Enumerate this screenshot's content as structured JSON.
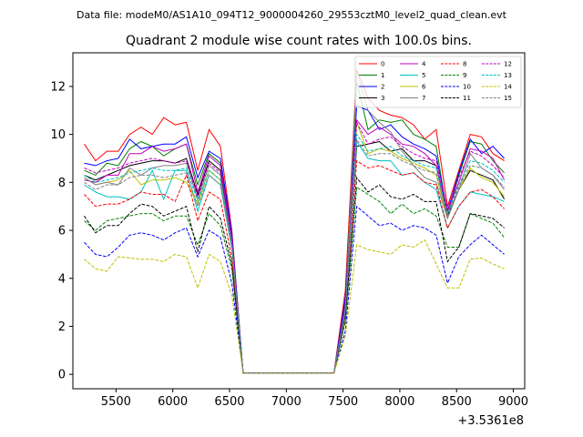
{
  "chart_data": {
    "type": "line",
    "suptitle": "Data file: modeM0/AS1A10_094T12_9000004260_29553cztM0_level2_quad_clean.evt",
    "title": "Quadrant 2 module wise count rates with 100.0s bins.",
    "xlabel": "",
    "ylabel": "",
    "x_offset_label": "+3.5361e8",
    "xlim": [
      5120,
      9100
    ],
    "ylim": [
      -0.6,
      13.4
    ],
    "x_ticks": [
      5500,
      6000,
      6500,
      7000,
      7500,
      8000,
      8500,
      9000
    ],
    "y_ticks": [
      0,
      2,
      4,
      6,
      8,
      10,
      12
    ],
    "grid": false,
    "legend_position": "top-right",
    "legend_columns": 4,
    "x": [
      5220,
      5320,
      5420,
      5520,
      5620,
      5720,
      5820,
      5920,
      6020,
      6120,
      6220,
      6320,
      6420,
      6520,
      6620,
      6720,
      6820,
      6920,
      7020,
      7120,
      7220,
      7320,
      7420,
      7520,
      7620,
      7720,
      7820,
      7920,
      8020,
      8120,
      8220,
      8320,
      8420,
      8520,
      8620,
      8720,
      8820,
      8920
    ],
    "series": [
      {
        "name": "0",
        "color": "#ff0000",
        "dash": "solid",
        "values": [
          9.6,
          8.9,
          9.3,
          9.3,
          10.0,
          10.3,
          10.0,
          10.7,
          10.4,
          10.5,
          8.5,
          10.2,
          9.5,
          6.0,
          0.05,
          0.05,
          0.05,
          0.05,
          0.05,
          0.05,
          0.05,
          0.05,
          0.05,
          3.5,
          12.7,
          11.5,
          11.0,
          10.8,
          10.7,
          10.4,
          9.8,
          10.2,
          7.0,
          8.5,
          10.0,
          9.9,
          9.2,
          8.9
        ]
      },
      {
        "name": "1",
        "color": "#008000",
        "dash": "solid",
        "values": [
          8.5,
          8.3,
          8.8,
          8.7,
          9.4,
          9.7,
          9.5,
          9.1,
          9.4,
          9.6,
          7.9,
          9.2,
          8.8,
          5.8,
          0.05,
          0.05,
          0.05,
          0.05,
          0.05,
          0.05,
          0.05,
          0.05,
          0.05,
          3.0,
          12.2,
          10.2,
          10.6,
          10.5,
          10.6,
          10.0,
          9.8,
          9.5,
          6.6,
          8.3,
          9.7,
          9.6,
          8.9,
          8.4
        ]
      },
      {
        "name": "2",
        "color": "#0000ff",
        "dash": "solid",
        "values": [
          8.8,
          8.7,
          8.9,
          9.0,
          9.8,
          9.4,
          9.5,
          9.6,
          9.6,
          9.9,
          8.2,
          9.3,
          9.0,
          5.9,
          0.05,
          0.05,
          0.05,
          0.05,
          0.05,
          0.05,
          0.05,
          0.05,
          0.05,
          3.2,
          11.2,
          11.0,
          10.2,
          10.4,
          9.9,
          9.6,
          9.4,
          9.1,
          6.8,
          8.4,
          9.8,
          9.2,
          9.5,
          9.0
        ]
      },
      {
        "name": "3",
        "color": "#000000",
        "dash": "solid",
        "values": [
          8.3,
          8.1,
          8.3,
          8.5,
          8.7,
          8.8,
          8.9,
          8.9,
          8.8,
          9.0,
          7.5,
          8.9,
          8.5,
          5.5,
          0.05,
          0.05,
          0.05,
          0.05,
          0.05,
          0.05,
          0.05,
          0.05,
          0.05,
          2.8,
          9.5,
          9.6,
          9.7,
          9.3,
          9.4,
          8.9,
          8.9,
          8.7,
          6.6,
          7.7,
          8.5,
          8.3,
          8.1,
          7.3
        ]
      },
      {
        "name": "4",
        "color": "#bf00bf",
        "dash": "solid",
        "values": [
          8.1,
          8.0,
          8.3,
          8.3,
          9.2,
          9.2,
          9.5,
          9.3,
          9.4,
          9.6,
          7.6,
          9.1,
          8.7,
          5.7,
          0.05,
          0.05,
          0.05,
          0.05,
          0.05,
          0.05,
          0.05,
          0.05,
          0.05,
          2.9,
          10.6,
          10.0,
          10.3,
          10.0,
          9.6,
          9.5,
          9.2,
          8.7,
          6.8,
          8.0,
          9.4,
          9.3,
          9.0,
          8.1
        ]
      },
      {
        "name": "5",
        "color": "#00bfbf",
        "dash": "solid",
        "values": [
          7.9,
          7.6,
          7.4,
          7.4,
          7.3,
          7.6,
          8.5,
          7.3,
          8.5,
          8.5,
          6.8,
          8.3,
          7.9,
          5.2,
          0.05,
          0.05,
          0.05,
          0.05,
          0.05,
          0.05,
          0.05,
          0.05,
          0.05,
          2.6,
          9.7,
          9.0,
          8.9,
          8.9,
          8.3,
          8.4,
          8.0,
          7.7,
          6.1,
          7.0,
          7.6,
          7.5,
          7.4,
          7.2
        ]
      },
      {
        "name": "6",
        "color": "#bfbf00",
        "dash": "solid",
        "values": [
          8.2,
          7.9,
          8.0,
          8.1,
          8.5,
          7.9,
          8.1,
          8.1,
          8.2,
          8.0,
          7.1,
          8.5,
          8.1,
          5.3,
          0.05,
          0.05,
          0.05,
          0.05,
          0.05,
          0.05,
          0.05,
          0.05,
          0.05,
          2.7,
          10.5,
          9.2,
          9.4,
          9.3,
          9.0,
          8.8,
          8.6,
          8.3,
          6.5,
          7.7,
          8.6,
          8.2,
          8.0,
          7.4
        ]
      },
      {
        "name": "7",
        "color": "#808080",
        "dash": "solid",
        "values": [
          8.2,
          7.9,
          8.0,
          7.9,
          8.6,
          8.3,
          8.6,
          8.7,
          8.7,
          8.8,
          7.3,
          8.7,
          8.3,
          5.4,
          0.05,
          0.05,
          0.05,
          0.05,
          0.05,
          0.05,
          0.05,
          0.05,
          0.05,
          2.7,
          12.6,
          11.0,
          10.5,
          10.1,
          9.3,
          8.7,
          8.2,
          8.0,
          6.5,
          7.7,
          9.2,
          8.6,
          8.3,
          7.7
        ]
      },
      {
        "name": "8",
        "color": "#ff0000",
        "dash": "dashed",
        "values": [
          7.5,
          7.0,
          7.1,
          7.1,
          7.3,
          7.6,
          7.5,
          7.5,
          7.2,
          8.3,
          6.4,
          7.6,
          7.3,
          4.8,
          0.05,
          0.05,
          0.05,
          0.05,
          0.05,
          0.05,
          0.05,
          0.05,
          0.05,
          2.5,
          8.9,
          8.6,
          8.7,
          8.5,
          8.3,
          8.4,
          8.0,
          7.9,
          6.1,
          7.0,
          7.6,
          7.7,
          7.4,
          6.9
        ]
      },
      {
        "name": "9",
        "color": "#008000",
        "dash": "dashed",
        "values": [
          6.4,
          6.0,
          6.4,
          6.5,
          6.6,
          6.7,
          6.7,
          6.4,
          6.6,
          6.6,
          5.4,
          6.7,
          6.2,
          4.4,
          0.05,
          0.05,
          0.05,
          0.05,
          0.05,
          0.05,
          0.05,
          0.05,
          0.05,
          2.2,
          7.8,
          7.5,
          7.2,
          6.7,
          7.1,
          6.7,
          6.9,
          6.6,
          5.3,
          5.3,
          6.7,
          6.5,
          6.3,
          5.7
        ]
      },
      {
        "name": "10",
        "color": "#0000ff",
        "dash": "dashed",
        "values": [
          5.5,
          5.0,
          4.9,
          5.3,
          5.8,
          5.9,
          5.8,
          5.6,
          5.9,
          6.1,
          4.9,
          6.0,
          5.7,
          3.8,
          0.05,
          0.05,
          0.05,
          0.05,
          0.05,
          0.05,
          0.05,
          0.05,
          0.05,
          1.8,
          7.0,
          6.6,
          6.2,
          6.3,
          6.0,
          6.2,
          6.1,
          5.8,
          3.8,
          4.9,
          5.4,
          5.8,
          5.4,
          5.0
        ]
      },
      {
        "name": "11",
        "color": "#000000",
        "dash": "dashed",
        "values": [
          6.6,
          5.9,
          6.2,
          6.2,
          6.7,
          7.1,
          7.0,
          6.6,
          6.8,
          7.0,
          5.1,
          7.0,
          6.5,
          4.6,
          0.05,
          0.05,
          0.05,
          0.05,
          0.05,
          0.05,
          0.05,
          0.05,
          0.05,
          2.4,
          8.2,
          7.6,
          7.9,
          7.4,
          7.3,
          7.5,
          7.2,
          7.2,
          4.7,
          5.3,
          6.7,
          6.6,
          6.5,
          6.1
        ]
      },
      {
        "name": "12",
        "color": "#bf00bf",
        "dash": "dashed",
        "values": [
          8.6,
          8.4,
          8.5,
          8.6,
          8.8,
          8.9,
          9.0,
          8.9,
          8.8,
          8.9,
          7.4,
          8.8,
          8.4,
          5.6,
          0.05,
          0.05,
          0.05,
          0.05,
          0.05,
          0.05,
          0.05,
          0.05,
          0.05,
          2.8,
          10.5,
          9.6,
          9.8,
          9.9,
          9.5,
          9.2,
          9.0,
          8.9,
          6.9,
          8.2,
          9.3,
          9.1,
          8.7,
          8.2
        ]
      },
      {
        "name": "13",
        "color": "#00bfbf",
        "dash": "dashed",
        "values": [
          8.3,
          8.0,
          8.1,
          8.2,
          8.4,
          8.5,
          8.6,
          8.5,
          8.5,
          8.6,
          7.2,
          8.5,
          8.1,
          5.4,
          0.05,
          0.05,
          0.05,
          0.05,
          0.05,
          0.05,
          0.05,
          0.05,
          0.05,
          2.7,
          10.0,
          9.3,
          9.4,
          9.5,
          9.1,
          8.9,
          8.7,
          8.6,
          6.7,
          7.9,
          8.9,
          8.8,
          8.5,
          8.0
        ]
      },
      {
        "name": "14",
        "color": "#bfbf00",
        "dash": "dashed",
        "values": [
          4.8,
          4.4,
          4.3,
          4.9,
          4.85,
          4.8,
          4.8,
          4.7,
          5.0,
          4.9,
          3.6,
          5.0,
          4.7,
          3.3,
          0.05,
          0.05,
          0.05,
          0.05,
          0.05,
          0.05,
          0.05,
          0.05,
          0.05,
          1.6,
          5.4,
          5.2,
          5.1,
          5.0,
          5.4,
          5.3,
          5.6,
          4.6,
          3.6,
          3.6,
          4.8,
          4.85,
          4.6,
          4.4
        ]
      },
      {
        "name": "15",
        "color": "#808080",
        "dash": "dashed",
        "values": [
          8.0,
          7.7,
          7.9,
          7.9,
          8.2,
          8.3,
          8.3,
          8.2,
          8.3,
          8.4,
          7.0,
          8.3,
          7.9,
          5.3,
          0.05,
          0.05,
          0.05,
          0.05,
          0.05,
          0.05,
          0.05,
          0.05,
          0.05,
          2.6,
          9.8,
          9.1,
          9.2,
          9.2,
          8.9,
          8.7,
          8.5,
          8.4,
          6.6,
          7.8,
          8.7,
          8.6,
          8.3,
          7.8
        ]
      }
    ]
  }
}
